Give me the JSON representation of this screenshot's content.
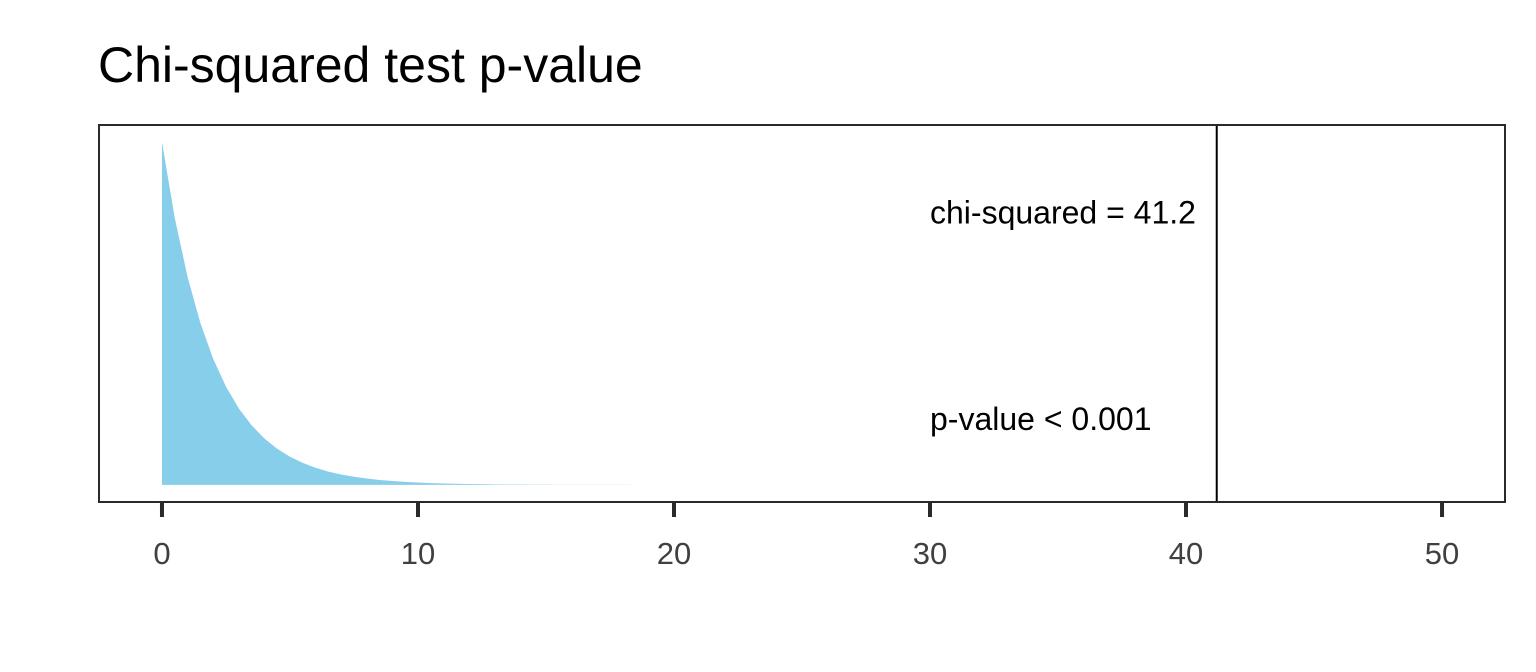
{
  "chart_data": {
    "type": "area",
    "title": "Chi-squared test p-value",
    "xlabel": "",
    "ylabel": "",
    "distribution": "chi-squared density, df = 2",
    "xlim": [
      -2.46,
      52.46
    ],
    "ylim": [
      -0.025,
      0.525
    ],
    "x_ticks": [
      0,
      10,
      20,
      30,
      40,
      50
    ],
    "x_tick_labels": [
      "0",
      "10",
      "20",
      "30",
      "40",
      "50"
    ],
    "y_axis_shown": false,
    "grid": false,
    "fill_color": "#87CEEB",
    "x": [
      0,
      0.5,
      1,
      1.5,
      2,
      2.5,
      3,
      3.5,
      4,
      4.5,
      5,
      5.5,
      6,
      6.5,
      7,
      7.5,
      8,
      8.5,
      9,
      9.5,
      10,
      10.5,
      11,
      11.5,
      12,
      12.5,
      13,
      13.5,
      14,
      14.5,
      15,
      15.5,
      16,
      16.5,
      17,
      17.5,
      18,
      18.5,
      19,
      19.5,
      20
    ],
    "y": [
      0.5,
      0.3894,
      0.3033,
      0.2362,
      0.1839,
      0.1433,
      0.1116,
      0.0869,
      0.0677,
      0.0527,
      0.041,
      0.032,
      0.0249,
      0.0194,
      0.0151,
      0.0118,
      0.0092,
      0.0071,
      0.0056,
      0.0043,
      0.0034,
      0.0026,
      0.002,
      0.0016,
      0.0012,
      0.001,
      0.0008,
      0.0006,
      0.0005,
      0.0004,
      0.0003,
      0.0002,
      0.0002,
      0.0001,
      0.0001,
      0.0001,
      0.0001,
      0,
      0,
      0,
      0
    ],
    "statistic_line": {
      "x": 41.2,
      "color": "#000000"
    },
    "annotations": [
      {
        "text": "chi-squared = 41.2",
        "x": 30,
        "y": 0.397
      },
      {
        "text": "p-value < 0.001",
        "x": 30,
        "y": 0.096
      }
    ]
  }
}
